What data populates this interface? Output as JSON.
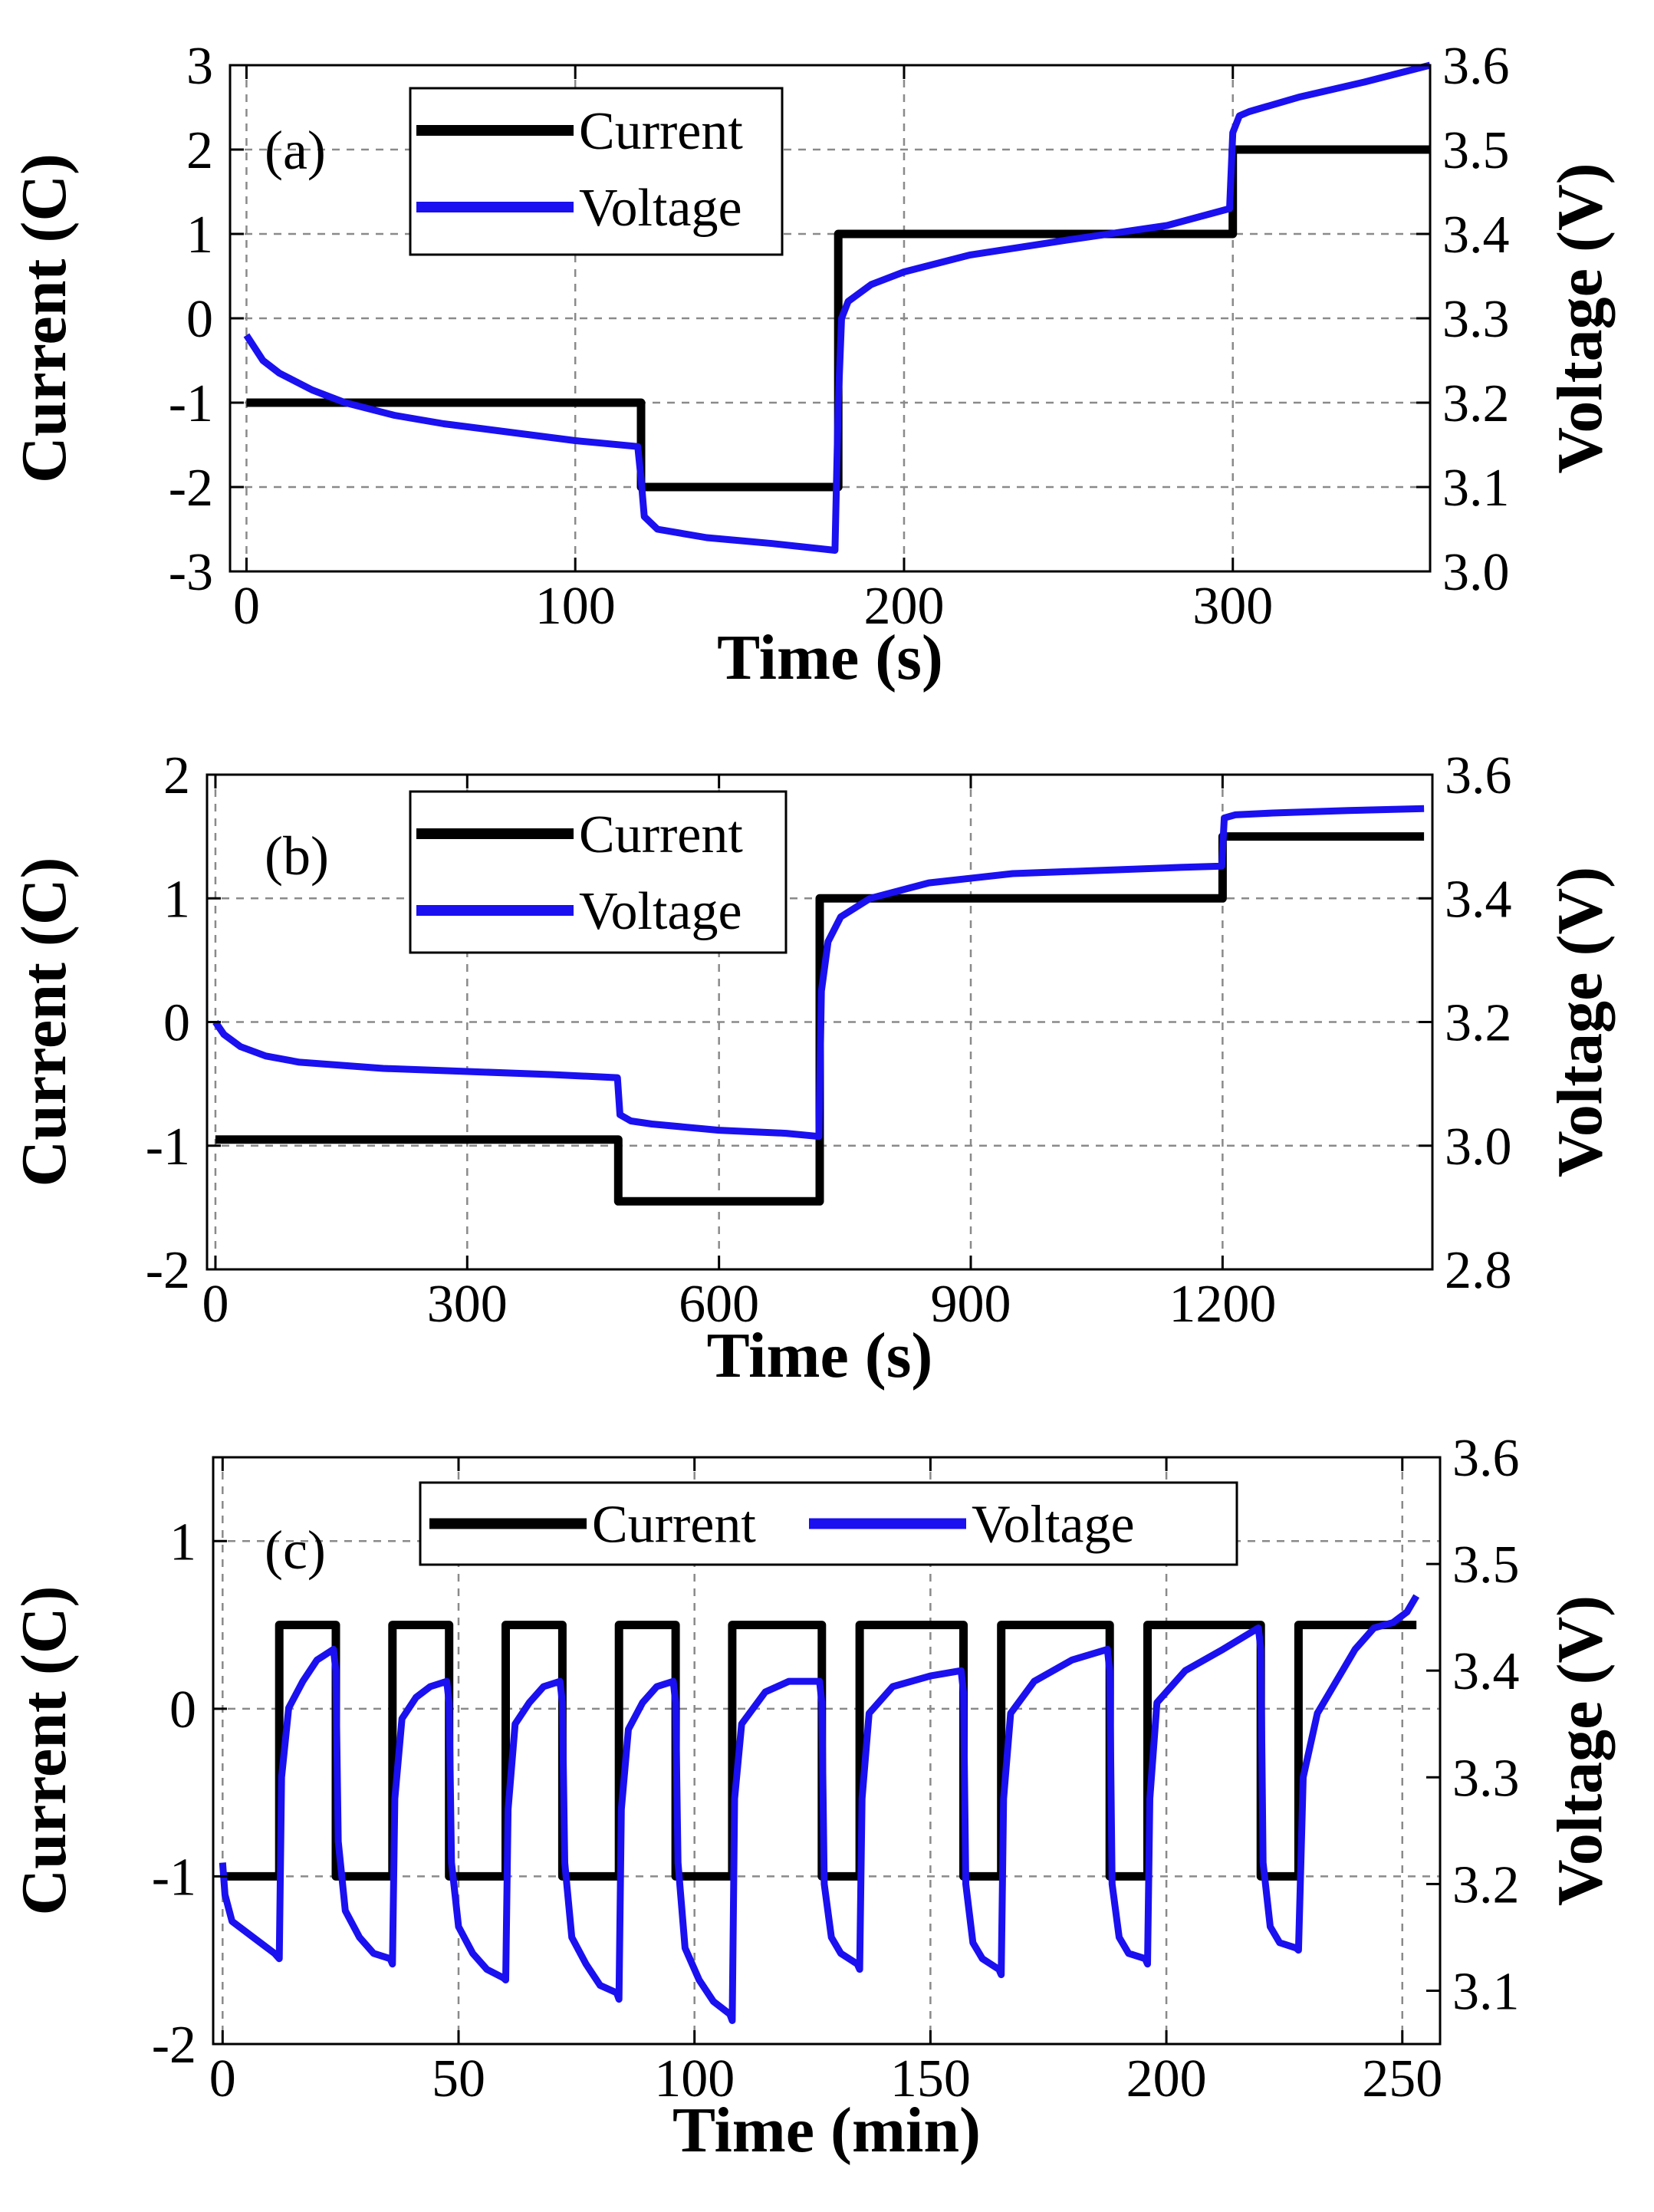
{
  "chart_data": [
    {
      "type": "line",
      "panel_label": "(a)",
      "xlabel": "Time (s)",
      "ylabel": "Current (C)",
      "y2label": "Voltage (V)",
      "xlim": [
        -5,
        360
      ],
      "ylim": [
        -3,
        3
      ],
      "y2lim": [
        3.0,
        3.6
      ],
      "xticks": [
        0,
        100,
        200,
        300
      ],
      "xtick_labels": [
        "0",
        "100",
        "200",
        "300"
      ],
      "yticks": [
        -3,
        -2,
        -1,
        0,
        1,
        2,
        3
      ],
      "ytick_labels": [
        "-3",
        "-2",
        "-1",
        "0",
        "1",
        "2",
        "3"
      ],
      "y2ticks": [
        3.0,
        3.1,
        3.2,
        3.3,
        3.4,
        3.5,
        3.6
      ],
      "y2tick_labels": [
        "3.0",
        "3.1",
        "3.2",
        "3.3",
        "3.4",
        "3.5",
        "3.6"
      ],
      "grid": true,
      "legend": {
        "position": "top-left",
        "layout": "vertical",
        "entries": [
          "Current",
          "Voltage"
        ]
      },
      "series": [
        {
          "name": "Current",
          "axis": "left",
          "color": "#000000",
          "x": [
            0,
            120,
            120,
            180,
            180,
            300,
            300,
            360
          ],
          "y": [
            -1,
            -1,
            -2,
            -2,
            1,
            1,
            2,
            2
          ]
        },
        {
          "name": "Voltage",
          "axis": "right",
          "color": "#1a10f0",
          "x": [
            0,
            5,
            10,
            20,
            30,
            45,
            60,
            80,
            100,
            119,
            120,
            121,
            125,
            140,
            160,
            179,
            180,
            181,
            183,
            190,
            200,
            220,
            250,
            280,
            299,
            300,
            302,
            305,
            320,
            340,
            360
          ],
          "y": [
            3.28,
            3.25,
            3.235,
            3.215,
            3.2,
            3.185,
            3.175,
            3.165,
            3.155,
            3.148,
            3.11,
            3.065,
            3.05,
            3.04,
            3.033,
            3.025,
            3.2,
            3.3,
            3.32,
            3.34,
            3.355,
            3.375,
            3.393,
            3.41,
            3.43,
            3.52,
            3.54,
            3.545,
            3.562,
            3.58,
            3.6
          ]
        }
      ]
    },
    {
      "type": "line",
      "panel_label": "(b)",
      "xlabel": "Time (s)",
      "ylabel": "Current (C)",
      "y2label": "Voltage (V)",
      "xlim": [
        -10,
        1450
      ],
      "ylim": [
        -2,
        2
      ],
      "y2lim": [
        2.8,
        3.6
      ],
      "xticks": [
        0,
        300,
        600,
        900,
        1200
      ],
      "xtick_labels": [
        "0",
        "300",
        "600",
        "900",
        "1200"
      ],
      "yticks": [
        -2,
        -1,
        0,
        1,
        2
      ],
      "ytick_labels": [
        "-2",
        "-1",
        "0",
        "1",
        "2"
      ],
      "y2ticks": [
        2.8,
        3.0,
        3.2,
        3.4,
        3.6
      ],
      "y2tick_labels": [
        "2.8",
        "3.0",
        "3.2",
        "3.4",
        "3.6"
      ],
      "grid": true,
      "legend": {
        "position": "top-left",
        "layout": "vertical",
        "entries": [
          "Current",
          "Voltage"
        ]
      },
      "series": [
        {
          "name": "Current",
          "axis": "left",
          "color": "#000000",
          "x": [
            0,
            480,
            480,
            720,
            720,
            1200,
            1200,
            1440
          ],
          "y": [
            -0.95,
            -0.95,
            -1.45,
            -1.45,
            1.0,
            1.0,
            1.5,
            1.5
          ]
        },
        {
          "name": "Voltage",
          "axis": "right",
          "color": "#1a10f0",
          "x": [
            0,
            10,
            30,
            60,
            100,
            200,
            300,
            400,
            479,
            482,
            495,
            520,
            600,
            680,
            719,
            722,
            730,
            745,
            780,
            850,
            950,
            1050,
            1150,
            1199,
            1202,
            1215,
            1260,
            1350,
            1440
          ],
          "y": [
            3.2,
            3.18,
            3.16,
            3.145,
            3.135,
            3.125,
            3.12,
            3.115,
            3.11,
            3.05,
            3.04,
            3.035,
            3.025,
            3.02,
            3.015,
            3.25,
            3.33,
            3.37,
            3.4,
            3.425,
            3.44,
            3.445,
            3.45,
            3.452,
            3.53,
            3.535,
            3.538,
            3.542,
            3.545
          ]
        }
      ]
    },
    {
      "type": "line",
      "panel_label": "(c)",
      "xlabel": "Time (min)",
      "ylabel": "Current (C)",
      "y2label": "Voltage (V)",
      "xlim": [
        -2,
        258
      ],
      "ylim": [
        -2,
        1.5
      ],
      "y2lim": [
        3.05,
        3.6
      ],
      "xticks": [
        0,
        50,
        100,
        150,
        200,
        250
      ],
      "xtick_labels": [
        "0",
        "50",
        "100",
        "150",
        "200",
        "250"
      ],
      "yticks": [
        -2,
        -1,
        0,
        1
      ],
      "ytick_labels": [
        "-2",
        "-1",
        "0",
        "1"
      ],
      "y2ticks": [
        3.1,
        3.2,
        3.3,
        3.4,
        3.5,
        3.6
      ],
      "y2tick_labels": [
        "3.1",
        "3.2",
        "3.3",
        "3.4",
        "3.5",
        "3.6"
      ],
      "grid": true,
      "legend": {
        "position": "top",
        "layout": "horizontal",
        "entries": [
          "Current",
          "Voltage"
        ]
      },
      "series": [
        {
          "name": "Current",
          "axis": "left",
          "color": "#000000",
          "x": [
            0,
            12,
            12,
            24,
            24,
            36,
            36,
            48,
            48,
            60,
            60,
            72,
            72,
            84,
            84,
            96,
            96,
            108,
            108,
            127,
            127,
            135,
            135,
            157,
            157,
            165,
            165,
            188,
            188,
            196,
            196,
            220,
            220,
            228,
            228,
            253
          ],
          "y": [
            -1,
            -1,
            0.5,
            0.5,
            -1,
            -1,
            0.5,
            0.5,
            -1,
            -1,
            0.5,
            0.5,
            -1,
            -1,
            0.5,
            0.5,
            -1,
            -1,
            0.5,
            0.5,
            -1,
            -1,
            0.5,
            0.5,
            -1,
            -1,
            0.5,
            0.5,
            -1,
            -1,
            0.5,
            0.5,
            -1,
            -1,
            0.5,
            0.5
          ]
        },
        {
          "name": "Voltage",
          "axis": "right",
          "color": "#1a10f0",
          "x": [
            0,
            0.5,
            2,
            5,
            8,
            11,
            12,
            12.5,
            14,
            17,
            20,
            23.5,
            24,
            24.5,
            26,
            29,
            32,
            35.5,
            36,
            36.5,
            38,
            41,
            44,
            47.5,
            48,
            48.5,
            50,
            53,
            56,
            59.5,
            60,
            60.5,
            62,
            65,
            68,
            71.5,
            72,
            72.5,
            74,
            77,
            80,
            83.5,
            84,
            84.5,
            86,
            89,
            92,
            95.5,
            96,
            96.5,
            98,
            101,
            104,
            107.5,
            108,
            108.5,
            110,
            115,
            120,
            126.5,
            127,
            127.5,
            129,
            131,
            134.5,
            135,
            135.5,
            137,
            142,
            150,
            156.5,
            157,
            157.5,
            159,
            161,
            164.5,
            165,
            165.5,
            167,
            172,
            180,
            187.5,
            188,
            188.5,
            190,
            192,
            195.5,
            196,
            196.5,
            198,
            204,
            212,
            219.5,
            220,
            220.5,
            222,
            224,
            227.5,
            228,
            229,
            232,
            236,
            240,
            244,
            248,
            251,
            253
          ],
          "y": [
            3.22,
            3.19,
            3.165,
            3.155,
            3.145,
            3.135,
            3.13,
            3.3,
            3.365,
            3.39,
            3.41,
            3.42,
            3.4,
            3.24,
            3.175,
            3.15,
            3.135,
            3.13,
            3.125,
            3.28,
            3.355,
            3.375,
            3.385,
            3.39,
            3.37,
            3.22,
            3.16,
            3.135,
            3.12,
            3.112,
            3.11,
            3.27,
            3.35,
            3.37,
            3.385,
            3.39,
            3.37,
            3.22,
            3.15,
            3.125,
            3.105,
            3.098,
            3.092,
            3.27,
            3.345,
            3.37,
            3.385,
            3.39,
            3.37,
            3.22,
            3.14,
            3.11,
            3.09,
            3.078,
            3.072,
            3.28,
            3.35,
            3.38,
            3.39,
            3.39,
            3.37,
            3.2,
            3.15,
            3.135,
            3.125,
            3.12,
            3.28,
            3.36,
            3.385,
            3.395,
            3.4,
            3.38,
            3.2,
            3.145,
            3.13,
            3.12,
            3.115,
            3.28,
            3.36,
            3.39,
            3.41,
            3.42,
            3.4,
            3.2,
            3.15,
            3.135,
            3.13,
            3.125,
            3.28,
            3.37,
            3.4,
            3.42,
            3.44,
            3.42,
            3.22,
            3.16,
            3.145,
            3.14,
            3.138,
            3.3,
            3.36,
            3.39,
            3.42,
            3.44,
            3.445,
            3.455,
            3.47
          ]
        }
      ]
    }
  ]
}
